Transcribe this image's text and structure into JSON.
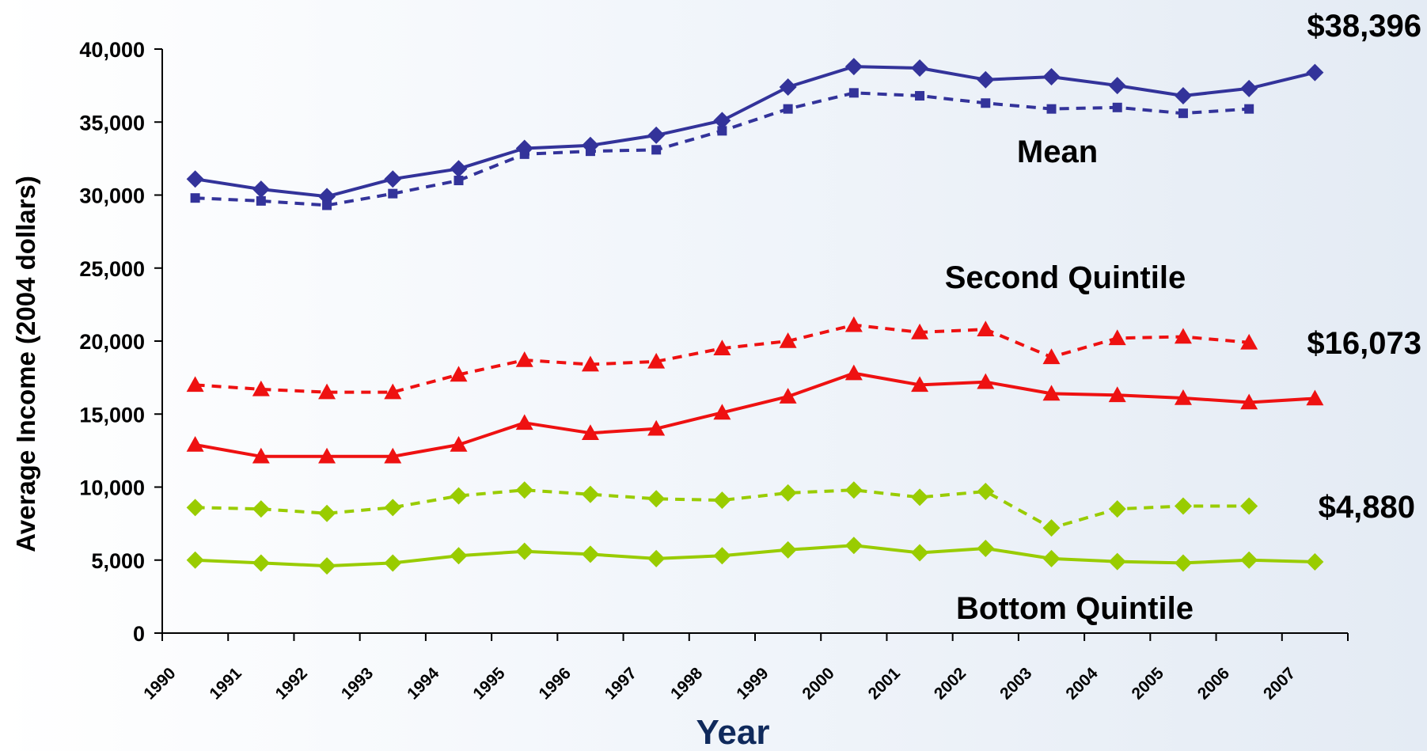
{
  "chart_data": {
    "type": "line",
    "title": "",
    "xlabel": "Year",
    "ylabel": "Average Income (2004 dollars)",
    "ylim": [
      0,
      40000
    ],
    "yticks": [
      0,
      5000,
      10000,
      15000,
      20000,
      25000,
      30000,
      35000,
      40000
    ],
    "ytick_labels": [
      "0",
      "5,000",
      "10,000",
      "15,000",
      "20,000",
      "25,000",
      "30,000",
      "35,000",
      "40,000"
    ],
    "categories": [
      "1990",
      "1991",
      "1992",
      "1993",
      "1994",
      "1995",
      "1996",
      "1997",
      "1998",
      "1999",
      "2000",
      "2001",
      "2002",
      "2003",
      "2004",
      "2005",
      "2006",
      "2007"
    ],
    "grid": false,
    "series": [
      {
        "group": "Mean",
        "style": "solid",
        "marker": "diamond",
        "color": "#33339a",
        "values": [
          31100,
          30400,
          29900,
          31100,
          31800,
          33200,
          33400,
          34100,
          35100,
          37400,
          38800,
          38700,
          37900,
          38100,
          37500,
          36800,
          37300,
          38396
        ]
      },
      {
        "group": "Mean",
        "style": "dashed",
        "marker": "square",
        "color": "#33339a",
        "values": [
          29800,
          29600,
          29300,
          30100,
          31000,
          32800,
          33000,
          33100,
          34400,
          35900,
          37000,
          36800,
          36300,
          35900,
          36000,
          35600,
          35900,
          null
        ]
      },
      {
        "group": "Second Quintile",
        "style": "dashed",
        "marker": "triangle",
        "color": "#ee1111",
        "values": [
          17000,
          16700,
          16500,
          16500,
          17700,
          18700,
          18400,
          18600,
          19500,
          20000,
          21100,
          20600,
          20800,
          18900,
          20200,
          20300,
          19900,
          null
        ]
      },
      {
        "group": "Second Quintile",
        "style": "solid",
        "marker": "triangle",
        "color": "#ee1111",
        "values": [
          12900,
          12100,
          12100,
          12100,
          12900,
          14400,
          13700,
          14000,
          15100,
          16200,
          17800,
          17000,
          17200,
          16400,
          16300,
          16100,
          15800,
          16073
        ]
      },
      {
        "group": "Bottom Quintile",
        "style": "dashed",
        "marker": "diamond",
        "color": "#99cc00",
        "values": [
          8600,
          8500,
          8200,
          8600,
          9400,
          9800,
          9500,
          9200,
          9100,
          9600,
          9800,
          9300,
          9700,
          7200,
          8500,
          8700,
          8700,
          null
        ]
      },
      {
        "group": "Bottom Quintile",
        "style": "solid",
        "marker": "diamond",
        "color": "#99cc00",
        "values": [
          5000,
          4800,
          4600,
          4800,
          5300,
          5600,
          5400,
          5100,
          5300,
          5700,
          6000,
          5500,
          5800,
          5100,
          4900,
          4800,
          5000,
          4880
        ]
      }
    ],
    "annotations": [
      {
        "text": "Mean",
        "color": "#000000"
      },
      {
        "text": "Second Quintile",
        "color": "#000000"
      },
      {
        "text": "Bottom Quintile",
        "color": "#000000"
      },
      {
        "text": "$38,396",
        "color": "#000000"
      },
      {
        "text": "$16,073",
        "color": "#000000"
      },
      {
        "text": "$4,880",
        "color": "#000000"
      }
    ]
  }
}
